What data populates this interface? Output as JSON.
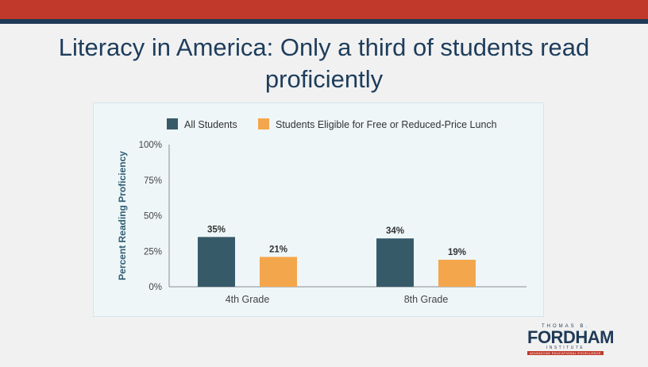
{
  "slide": {
    "title": "Literacy in America: Only a third of students read proficiently",
    "colors": {
      "top_bar": "#c0392b",
      "title_text": "#1e3d5c"
    }
  },
  "logo": {
    "top": "THOMAS B.",
    "main": "FORDHAM",
    "sub": "INSTITUTE",
    "tagline": "ADVANCING EDUCATIONAL EXCELLENCE"
  },
  "chart_data": {
    "type": "bar",
    "categories": [
      "4th Grade",
      "8th Grade"
    ],
    "series": [
      {
        "name": "All Students",
        "values": [
          35,
          34
        ],
        "labels": [
          "35%",
          "34%"
        ],
        "color": "#375a69"
      },
      {
        "name": "Students Eligible for Free or Reduced-Price Lunch",
        "values": [
          21,
          19
        ],
        "labels": [
          "21%",
          "19%"
        ],
        "color": "#f4a64c"
      }
    ],
    "ylabel": "Percent Reading Proficiency",
    "ylim": [
      0,
      100
    ],
    "yticks": [
      0,
      25,
      50,
      75,
      100
    ],
    "ytick_labels": [
      "0%",
      "25%",
      "50%",
      "75%",
      "100%"
    ],
    "legend_position": "top",
    "grid": false
  }
}
